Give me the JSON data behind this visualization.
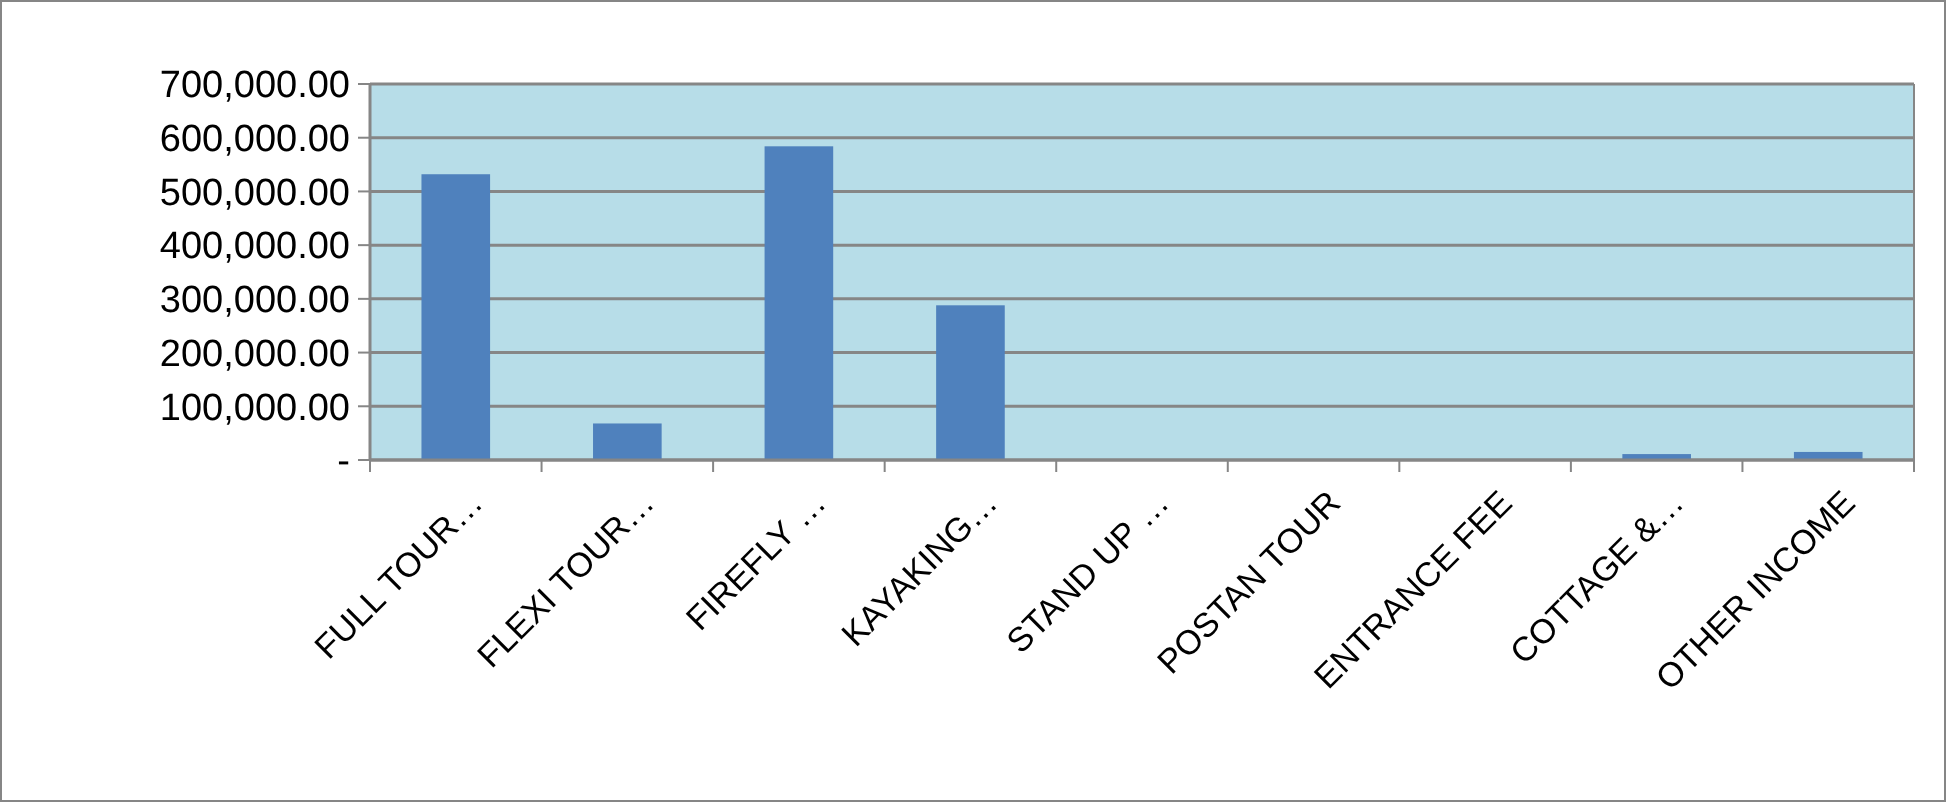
{
  "chart_data": {
    "type": "bar",
    "categories": [
      "FULL TOUR…",
      "FLEXI  TOUR…",
      "FIREFLY …",
      "KAYAKING…",
      "STAND UP …",
      "POSTAN TOUR",
      "ENTRANCE FEE",
      "COTTAGE &…",
      "OTHER INCOME"
    ],
    "values": [
      532000,
      68000,
      584000,
      288000,
      0,
      0,
      0,
      11000,
      15000
    ],
    "color": "#4f81bd",
    "ylim": [
      0,
      700000
    ],
    "yticks": [
      {
        "value": 0,
        "label": "-"
      },
      {
        "value": 100000,
        "label": "100,000.00"
      },
      {
        "value": 200000,
        "label": "200,000.00"
      },
      {
        "value": 300000,
        "label": "300,000.00"
      },
      {
        "value": 400000,
        "label": "400,000.00"
      },
      {
        "value": 500000,
        "label": "500,000.00"
      },
      {
        "value": 600000,
        "label": "600,000.00"
      },
      {
        "value": 700000,
        "label": "700,000.00"
      }
    ],
    "grid": "y"
  }
}
